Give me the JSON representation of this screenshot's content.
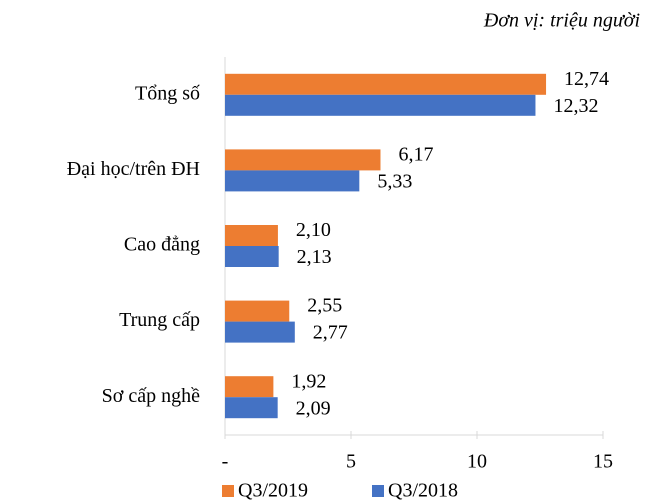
{
  "chart_data": {
    "type": "hbar",
    "unit_note": "Đơn vị: triệu người",
    "categories": [
      "Tổng số",
      "Đại học/trên ĐH",
      "Cao đẳng",
      "Trung cấp",
      "Sơ cấp nghề"
    ],
    "series": [
      {
        "name": "Q3/2019",
        "color": "#ed7d31",
        "values": [
          12.74,
          6.17,
          2.1,
          2.55,
          1.92
        ],
        "value_labels": [
          "12,74",
          "6,17",
          "2,10",
          "2,55",
          "1,92"
        ]
      },
      {
        "name": "Q3/2018",
        "color": "#4472c4",
        "values": [
          12.32,
          5.33,
          2.13,
          2.77,
          2.09
        ],
        "value_labels": [
          "12,32",
          "5,33",
          "2,13",
          "2,77",
          "2,09"
        ]
      }
    ],
    "xlim": [
      0,
      15
    ],
    "xticks": [
      {
        "value": 0,
        "label": "-"
      },
      5,
      10,
      15
    ],
    "legend": "bottom"
  }
}
